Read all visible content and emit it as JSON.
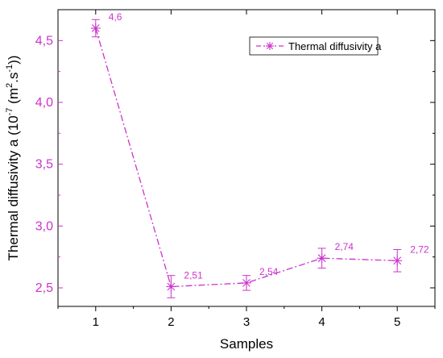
{
  "chart_data": {
    "type": "line",
    "title": "",
    "xlabel": "Samples",
    "ylabel": "Thermal diffusivity a (10⁻⁷ (m².s⁻¹))",
    "x": [
      1,
      2,
      3,
      4,
      5
    ],
    "x_tick_labels": [
      "1",
      "2",
      "3",
      "4",
      "5"
    ],
    "xlim": [
      0.5,
      5.5
    ],
    "ylim": [
      2.35,
      4.75
    ],
    "y_ticks": [
      2.5,
      3.0,
      3.5,
      4.0,
      4.5
    ],
    "y_tick_labels": [
      "2,5",
      "3,0",
      "3,5",
      "4,0",
      "4,5"
    ],
    "grid": false,
    "legend_position": "top-right",
    "series": [
      {
        "name": "Thermal diffusivity a",
        "color": "#cc33cc",
        "line_style": "dash-dot",
        "marker": "asterisk",
        "values": [
          4.6,
          2.51,
          2.54,
          2.74,
          2.72
        ],
        "errors": [
          0.07,
          0.09,
          0.06,
          0.08,
          0.09
        ],
        "data_labels": [
          "4,6",
          "2,51",
          "2,54",
          "2,74",
          "2,72"
        ]
      }
    ]
  }
}
